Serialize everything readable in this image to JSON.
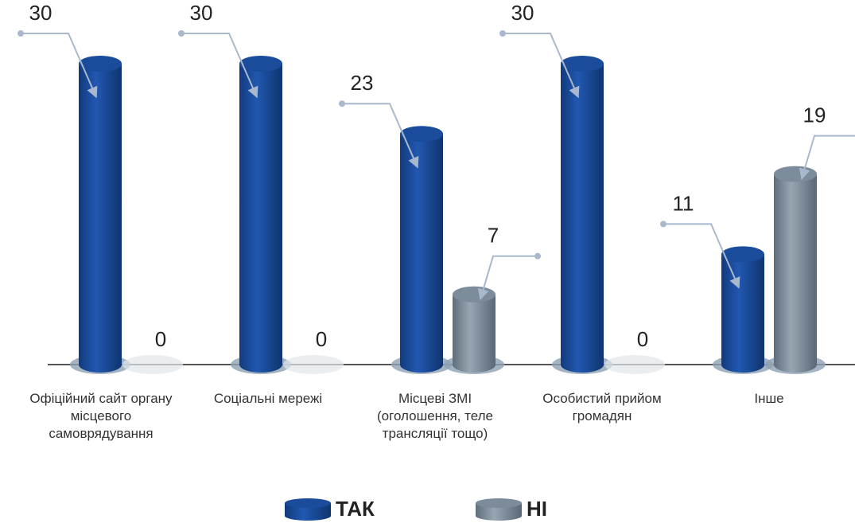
{
  "chart_data": {
    "type": "bar",
    "categories": [
      "Офіційний сайт органу місцевого самоврядування",
      "Соціальні мережі",
      "Місцеві ЗМІ (оголошення, теле трансляції тощо)",
      "Особистий прийом громадян",
      "Інше"
    ],
    "series": [
      {
        "name": "ТАК",
        "color": "#1b4c9b",
        "values": [
          30,
          30,
          23,
          30,
          11
        ]
      },
      {
        "name": "НІ",
        "color": "#7d8c9a",
        "values": [
          0,
          0,
          7,
          0,
          19
        ]
      }
    ]
  }
}
